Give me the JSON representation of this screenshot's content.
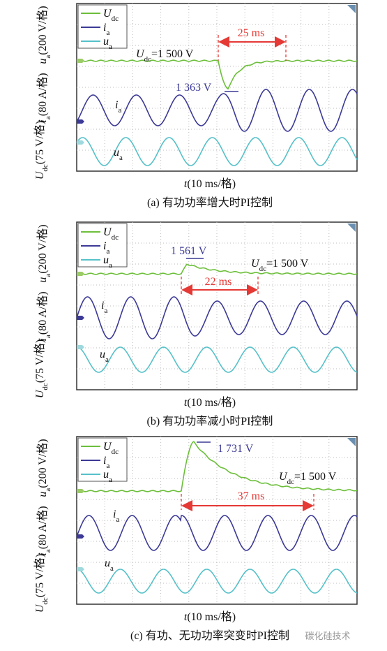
{
  "panels": [
    {
      "y_labels": [
        {
          "main": "u",
          "sub": "a",
          "rest": "(200 V/格)"
        },
        {
          "main": "i",
          "sub": "a",
          "rest": "(80 A/格)"
        },
        {
          "main": "U",
          "sub": "dc",
          "rest": "(75 V/格)"
        }
      ],
      "legend": [
        {
          "main": "U",
          "sub": "dc"
        },
        {
          "main": "i",
          "sub": "a"
        },
        {
          "main": "u",
          "sub": "a"
        }
      ],
      "udc_annotation": {
        "main": "U",
        "sub": "dc",
        "rest": "=1 500 V"
      },
      "peak_annotation": "1 363 V",
      "duration_annotation": "25 ms",
      "trace_labels": [
        {
          "main": "i",
          "sub": "a"
        },
        {
          "main": "u",
          "sub": "a"
        }
      ],
      "x_label": {
        "main": "t",
        "rest": "(10 ms/格)"
      },
      "caption": "(a) 有功功率增大时PI控制"
    },
    {
      "y_labels": [
        {
          "main": "u",
          "sub": "a",
          "rest": "(200 V/格)"
        },
        {
          "main": "i",
          "sub": "a",
          "rest": "(80 A/格)"
        },
        {
          "main": "U",
          "sub": "dc",
          "rest": "(75 V/格)"
        }
      ],
      "legend": [
        {
          "main": "U",
          "sub": "dc"
        },
        {
          "main": "i",
          "sub": "a"
        },
        {
          "main": "u",
          "sub": "a"
        }
      ],
      "udc_annotation": {
        "main": "U",
        "sub": "dc",
        "rest": "=1 500 V"
      },
      "peak_annotation": "1 561 V",
      "duration_annotation": "22 ms",
      "trace_labels": [
        {
          "main": "i",
          "sub": "a"
        },
        {
          "main": "u",
          "sub": "a"
        }
      ],
      "x_label": {
        "main": "t",
        "rest": "(10 ms/格)"
      },
      "caption": "(b) 有功功率减小时PI控制"
    },
    {
      "y_labels": [
        {
          "main": "u",
          "sub": "a",
          "rest": "(200 V/格)"
        },
        {
          "main": "i",
          "sub": "a",
          "rest": "(80 A/格)"
        },
        {
          "main": "U",
          "sub": "dc",
          "rest": "(75 V/格)"
        }
      ],
      "legend": [
        {
          "main": "U",
          "sub": "dc"
        },
        {
          "main": "i",
          "sub": "a"
        },
        {
          "main": "u",
          "sub": "a"
        }
      ],
      "udc_annotation": {
        "main": "U",
        "sub": "dc",
        "rest": "=1 500 V"
      },
      "peak_annotation": "1 731 V",
      "duration_annotation": "37 ms",
      "trace_labels": [
        {
          "main": "i",
          "sub": "a"
        },
        {
          "main": "u",
          "sub": "a"
        }
      ],
      "x_label": {
        "main": "t",
        "rest": "(10 ms/格)"
      },
      "caption": "(c) 有功、无功功率突变时PI控制"
    }
  ],
  "watermark": "碳化硅技术"
}
